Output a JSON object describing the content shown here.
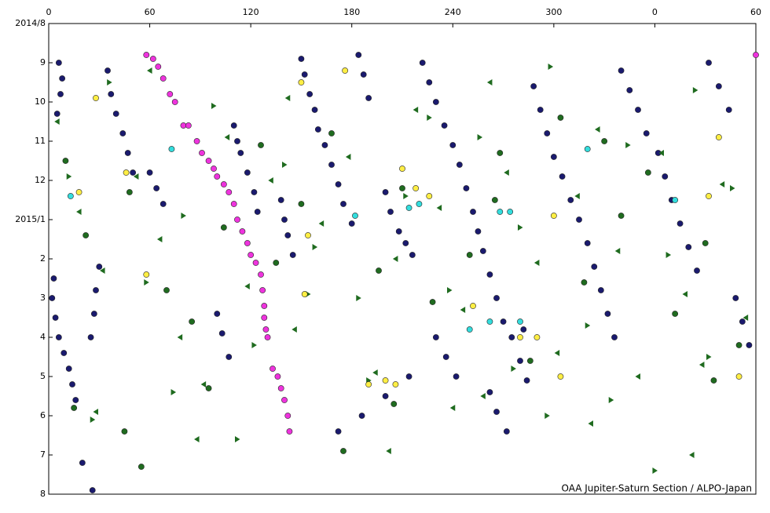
{
  "chart_data": {
    "type": "scatter",
    "xlim": [
      0,
      420
    ],
    "ylim": [
      0,
      12
    ],
    "y_inverted": true,
    "xticks": [
      0,
      60,
      120,
      180,
      240,
      300,
      {
        "value": 360,
        "label": "0"
      },
      {
        "value": 420,
        "label": "60"
      }
    ],
    "yticks": [
      {
        "value": 0,
        "label": "2014/8"
      },
      {
        "value": 1,
        "label": "9"
      },
      {
        "value": 2,
        "label": "10"
      },
      {
        "value": 3,
        "label": "11"
      },
      {
        "value": 4,
        "label": "12"
      },
      {
        "value": 5,
        "label": "2015/1"
      },
      {
        "value": 6,
        "label": "2"
      },
      {
        "value": 7,
        "label": "3"
      },
      {
        "value": 8,
        "label": "4"
      },
      {
        "value": 9,
        "label": "5"
      },
      {
        "value": 10,
        "label": "6"
      },
      {
        "value": 11,
        "label": "7"
      },
      {
        "value": 12,
        "label": "8"
      }
    ],
    "annotation": "OAA Jupiter-Saturn Section / ALPO-Japan",
    "series": [
      {
        "color": "#1a1a6e",
        "marker": "circle",
        "x": [
          6,
          8,
          7,
          5,
          3,
          2,
          4,
          6,
          9,
          12,
          14,
          16,
          35,
          37,
          40,
          44,
          47,
          50,
          30,
          28,
          27,
          25,
          110,
          112,
          114,
          118,
          122,
          124,
          100,
          103,
          107,
          138,
          140,
          142,
          145,
          150,
          152,
          155,
          158,
          160,
          164,
          168,
          172,
          175,
          180,
          184,
          187,
          190,
          200,
          203,
          208,
          212,
          216,
          222,
          226,
          230,
          235,
          240,
          244,
          248,
          252,
          255,
          258,
          262,
          266,
          270,
          275,
          280,
          284,
          288,
          292,
          296,
          300,
          305,
          310,
          315,
          320,
          324,
          328,
          332,
          336,
          340,
          345,
          350,
          355,
          362,
          366,
          370,
          375,
          380,
          385,
          392,
          398,
          404,
          408,
          412,
          416,
          230,
          236,
          242,
          262,
          266,
          272,
          282,
          214,
          200,
          186,
          172,
          60,
          64,
          68,
          20,
          26
        ],
        "y": [
          1.0,
          1.4,
          1.8,
          2.3,
          6.5,
          7.0,
          7.5,
          8.0,
          8.4,
          8.8,
          9.2,
          9.6,
          1.2,
          1.8,
          2.3,
          2.8,
          3.3,
          3.8,
          6.2,
          6.8,
          7.4,
          8.0,
          2.6,
          3.0,
          3.3,
          3.8,
          4.3,
          4.8,
          7.4,
          7.9,
          8.5,
          4.5,
          5.0,
          5.4,
          5.9,
          0.9,
          1.3,
          1.8,
          2.2,
          2.7,
          3.1,
          3.6,
          4.1,
          4.6,
          5.1,
          0.8,
          1.3,
          1.9,
          4.3,
          4.8,
          5.3,
          5.6,
          5.9,
          1.0,
          1.5,
          2.0,
          2.6,
          3.1,
          3.6,
          4.2,
          4.8,
          5.3,
          5.8,
          6.4,
          7.0,
          7.6,
          8.0,
          8.6,
          9.1,
          1.6,
          2.2,
          2.8,
          3.4,
          3.9,
          4.5,
          5.0,
          5.6,
          6.2,
          6.8,
          7.4,
          8.0,
          1.2,
          1.7,
          2.2,
          2.8,
          3.3,
          3.9,
          4.5,
          5.1,
          5.7,
          6.3,
          1.0,
          1.6,
          2.2,
          7.0,
          7.6,
          8.2,
          8.0,
          8.5,
          9.0,
          9.4,
          9.9,
          10.4,
          7.8,
          9.0,
          9.5,
          10.0,
          10.4,
          3.8,
          4.2,
          4.6,
          11.2,
          11.9
        ]
      },
      {
        "color": "#1f6b1f",
        "marker": "circle",
        "x": [
          10,
          22,
          48,
          70,
          85,
          104,
          126,
          150,
          168,
          196,
          210,
          228,
          250,
          268,
          286,
          304,
          318,
          340,
          356,
          372,
          390,
          410,
          15,
          45,
          95,
          135,
          205,
          265,
          330,
          395,
          55,
          175
        ],
        "y": [
          3.5,
          5.4,
          4.3,
          6.8,
          7.6,
          5.2,
          3.1,
          4.6,
          2.8,
          6.3,
          4.2,
          7.1,
          5.9,
          3.3,
          8.6,
          2.4,
          6.6,
          4.9,
          3.8,
          7.4,
          5.6,
          8.2,
          9.8,
          10.4,
          9.3,
          6.1,
          9.7,
          4.5,
          3.0,
          9.1,
          11.3,
          10.9
        ]
      },
      {
        "color": "#1f6b1f",
        "marker": "triangle-left",
        "x": [
          5,
          18,
          32,
          52,
          66,
          78,
          92,
          106,
          118,
          132,
          146,
          162,
          178,
          194,
          206,
          218,
          232,
          246,
          258,
          272,
          290,
          302,
          314,
          326,
          338,
          350,
          364,
          378,
          388,
          400,
          414,
          28,
          88,
          142,
          202,
          262,
          322,
          382,
          60,
          240
        ],
        "y": [
          2.5,
          4.8,
          6.3,
          3.9,
          5.5,
          8.0,
          9.2,
          2.9,
          6.7,
          4.0,
          7.8,
          5.1,
          3.4,
          8.9,
          6.0,
          2.2,
          4.7,
          7.3,
          9.5,
          3.8,
          6.1,
          8.4,
          4.4,
          2.7,
          5.8,
          9.0,
          3.3,
          6.9,
          8.7,
          4.1,
          7.5,
          9.9,
          10.6,
          1.9,
          10.9,
          1.5,
          10.2,
          11.0,
          1.2,
          9.8
        ]
      },
      {
        "color": "#1f6b1f",
        "marker": "triangle-right",
        "x": [
          12,
          36,
          58,
          80,
          98,
          122,
          140,
          158,
          184,
          212,
          238,
          256,
          280,
          298,
          320,
          344,
          368,
          392,
          406,
          26,
          74,
          154,
          226,
          276,
          334,
          384,
          112,
          296,
          190,
          360
        ],
        "y": [
          3.9,
          1.5,
          6.6,
          4.9,
          2.1,
          8.2,
          3.6,
          5.7,
          7.0,
          4.4,
          6.8,
          2.9,
          5.2,
          1.1,
          7.7,
          3.1,
          5.9,
          8.5,
          4.2,
          10.1,
          9.4,
          6.9,
          2.4,
          8.8,
          9.6,
          1.7,
          10.6,
          10.0,
          9.1,
          11.4
        ]
      },
      {
        "color": "#ffee44",
        "marker": "circle",
        "x": [
          28,
          46,
          18,
          58,
          150,
          152,
          154,
          176,
          200,
          206,
          218,
          226,
          252,
          280,
          290,
          300,
          304,
          392,
          398,
          410,
          190,
          210
        ],
        "y": [
          1.9,
          3.8,
          4.3,
          6.4,
          1.5,
          6.9,
          5.4,
          1.2,
          9.1,
          9.2,
          4.2,
          4.4,
          7.2,
          8.0,
          8.0,
          4.9,
          9.0,
          4.4,
          2.9,
          9.0,
          9.2,
          3.7
        ]
      },
      {
        "color": "#33dddd",
        "marker": "circle",
        "x": [
          13,
          73,
          182,
          214,
          220,
          250,
          268,
          274,
          280,
          320,
          372,
          262
        ],
        "y": [
          4.4,
          3.2,
          4.9,
          4.7,
          4.6,
          7.8,
          4.8,
          4.8,
          7.6,
          3.2,
          4.5,
          7.6
        ]
      },
      {
        "color": "#ee33dd",
        "marker": "circle",
        "x": [
          58,
          62,
          65,
          68,
          72,
          75,
          80,
          83,
          88,
          91,
          95,
          98,
          100,
          104,
          107,
          110,
          112,
          115,
          118,
          120,
          123,
          126,
          127,
          128,
          128,
          129,
          130,
          133,
          136,
          138,
          140,
          142,
          143,
          420
        ],
        "y": [
          0.8,
          0.9,
          1.1,
          1.4,
          1.8,
          2.0,
          2.6,
          2.6,
          3.0,
          3.3,
          3.5,
          3.7,
          3.9,
          4.1,
          4.3,
          4.6,
          5.0,
          5.3,
          5.6,
          5.9,
          6.1,
          6.4,
          6.8,
          7.2,
          7.5,
          7.8,
          8.0,
          8.8,
          9.0,
          9.3,
          9.6,
          10.0,
          10.4,
          0.8
        ]
      }
    ]
  }
}
